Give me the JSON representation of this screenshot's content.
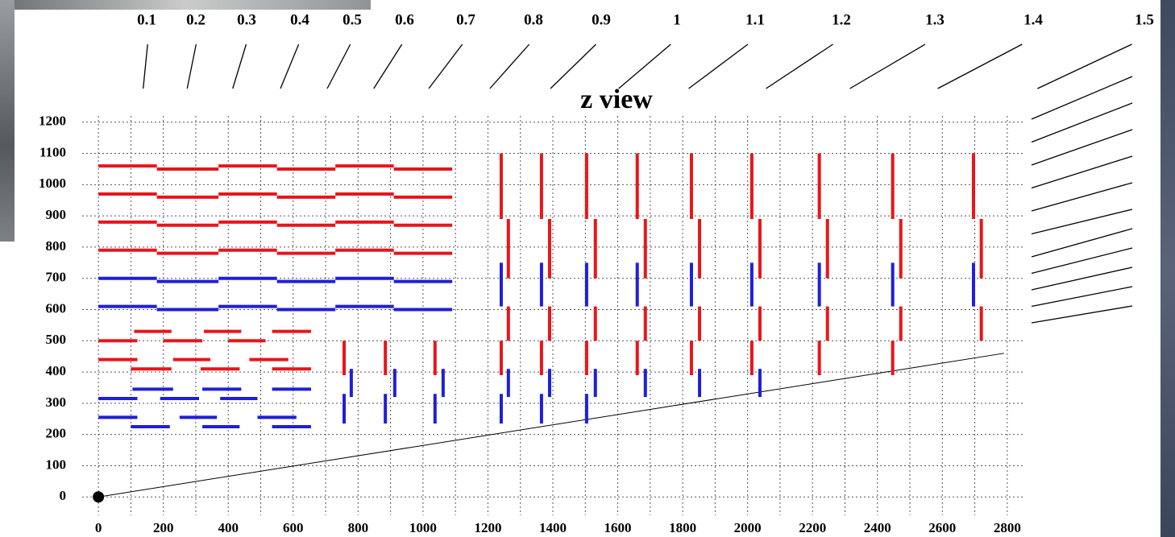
{
  "chart_data": {
    "type": "segments",
    "title": "z view",
    "eta": [
      0.1,
      0.2,
      0.3,
      0.4,
      0.5,
      0.6,
      0.7,
      0.8,
      0.9,
      1,
      1.1,
      1.2,
      1.3,
      1.4,
      1.5
    ],
    "xlim": [
      -50,
      2850
    ],
    "ylim": [
      -20,
      1220
    ],
    "xticks": [
      0,
      200,
      400,
      600,
      800,
      1000,
      1200,
      1400,
      1600,
      1800,
      2000,
      2200,
      2400,
      2600,
      2800
    ],
    "yticks": [
      0,
      100,
      200,
      300,
      400,
      500,
      600,
      700,
      800,
      900,
      1000,
      1100,
      1200
    ],
    "grid": true,
    "grid_step": 100,
    "origin": [
      0,
      0
    ],
    "line": {
      "x": [
        0,
        2790
      ],
      "y": [
        0,
        460
      ]
    },
    "series": [
      {
        "color": "#e8151b",
        "segments": [
          [
            0,
            1060,
            180,
            1060
          ],
          [
            180,
            1050,
            370,
            1050
          ],
          [
            370,
            1060,
            550,
            1060
          ],
          [
            550,
            1050,
            730,
            1050
          ],
          [
            730,
            1060,
            910,
            1060
          ],
          [
            910,
            1050,
            1090,
            1050
          ],
          [
            0,
            970,
            180,
            970
          ],
          [
            180,
            960,
            370,
            960
          ],
          [
            370,
            970,
            550,
            970
          ],
          [
            550,
            960,
            730,
            960
          ],
          [
            730,
            970,
            910,
            970
          ],
          [
            910,
            960,
            1090,
            960
          ],
          [
            0,
            880,
            180,
            880
          ],
          [
            180,
            870,
            370,
            870
          ],
          [
            370,
            880,
            550,
            880
          ],
          [
            550,
            870,
            730,
            870
          ],
          [
            730,
            880,
            910,
            880
          ],
          [
            910,
            870,
            1090,
            870
          ],
          [
            0,
            790,
            180,
            790
          ],
          [
            180,
            780,
            370,
            780
          ],
          [
            370,
            790,
            550,
            790
          ],
          [
            550,
            780,
            730,
            780
          ],
          [
            730,
            790,
            910,
            790
          ],
          [
            910,
            780,
            1090,
            780
          ],
          [
            110,
            530,
            225,
            530
          ],
          [
            325,
            530,
            440,
            530
          ],
          [
            535,
            530,
            655,
            530
          ],
          [
            0,
            500,
            120,
            500
          ],
          [
            200,
            500,
            320,
            500
          ],
          [
            400,
            500,
            515,
            500
          ],
          [
            0,
            440,
            120,
            440
          ],
          [
            230,
            440,
            345,
            440
          ],
          [
            465,
            440,
            585,
            440
          ],
          [
            100,
            410,
            225,
            410
          ],
          [
            315,
            410,
            435,
            410
          ],
          [
            535,
            410,
            655,
            410
          ],
          [
            757,
            500,
            757,
            390
          ],
          [
            884,
            500,
            884,
            390
          ],
          [
            1037,
            500,
            1037,
            390
          ],
          [
            1241,
            1100,
            1241,
            890
          ],
          [
            1263,
            890,
            1263,
            700
          ],
          [
            1263,
            610,
            1263,
            500
          ],
          [
            1241,
            500,
            1241,
            390
          ],
          [
            1365,
            1100,
            1365,
            890
          ],
          [
            1390,
            890,
            1390,
            700
          ],
          [
            1390,
            610,
            1390,
            500
          ],
          [
            1365,
            500,
            1365,
            390
          ],
          [
            1504,
            1100,
            1504,
            890
          ],
          [
            1531,
            890,
            1531,
            700
          ],
          [
            1531,
            610,
            1531,
            500
          ],
          [
            1504,
            500,
            1504,
            390
          ],
          [
            1660,
            1100,
            1660,
            890
          ],
          [
            1685,
            890,
            1685,
            700
          ],
          [
            1685,
            610,
            1685,
            500
          ],
          [
            1660,
            500,
            1660,
            390
          ],
          [
            1827,
            1100,
            1827,
            890
          ],
          [
            1852,
            890,
            1852,
            700
          ],
          [
            1852,
            610,
            1852,
            500
          ],
          [
            1827,
            500,
            1827,
            390
          ],
          [
            2013,
            1100,
            2013,
            890
          ],
          [
            2038,
            890,
            2038,
            700
          ],
          [
            2038,
            610,
            2038,
            500
          ],
          [
            2013,
            500,
            2013,
            390
          ],
          [
            2221,
            1100,
            2221,
            890
          ],
          [
            2246,
            890,
            2246,
            700
          ],
          [
            2246,
            610,
            2246,
            500
          ],
          [
            2221,
            500,
            2221,
            390
          ],
          [
            2447,
            1100,
            2447,
            890
          ],
          [
            2472,
            890,
            2472,
            700
          ],
          [
            2472,
            610,
            2472,
            500
          ],
          [
            2447,
            500,
            2447,
            390
          ],
          [
            2696,
            1100,
            2696,
            890
          ],
          [
            2720,
            890,
            2720,
            700
          ],
          [
            2720,
            610,
            2720,
            500
          ]
        ]
      },
      {
        "color": "#1f1fd8",
        "segments": [
          [
            0,
            700,
            180,
            700
          ],
          [
            180,
            690,
            370,
            690
          ],
          [
            370,
            700,
            550,
            700
          ],
          [
            550,
            690,
            730,
            690
          ],
          [
            730,
            700,
            910,
            700
          ],
          [
            910,
            690,
            1090,
            690
          ],
          [
            0,
            610,
            180,
            610
          ],
          [
            180,
            600,
            370,
            600
          ],
          [
            370,
            610,
            550,
            610
          ],
          [
            550,
            600,
            730,
            600
          ],
          [
            730,
            610,
            910,
            610
          ],
          [
            910,
            600,
            1090,
            600
          ],
          [
            105,
            345,
            230,
            345
          ],
          [
            320,
            345,
            440,
            345
          ],
          [
            535,
            345,
            655,
            345
          ],
          [
            0,
            315,
            120,
            315
          ],
          [
            190,
            315,
            310,
            315
          ],
          [
            375,
            315,
            490,
            315
          ],
          [
            0,
            255,
            120,
            255
          ],
          [
            250,
            255,
            365,
            255
          ],
          [
            490,
            255,
            610,
            255
          ],
          [
            100,
            225,
            220,
            225
          ],
          [
            320,
            225,
            435,
            225
          ],
          [
            535,
            225,
            655,
            225
          ],
          [
            1241,
            750,
            1241,
            610
          ],
          [
            1365,
            750,
            1365,
            610
          ],
          [
            1504,
            750,
            1504,
            610
          ],
          [
            1660,
            750,
            1660,
            610
          ],
          [
            1827,
            750,
            1827,
            610
          ],
          [
            2013,
            750,
            2013,
            610
          ],
          [
            2221,
            750,
            2221,
            610
          ],
          [
            2447,
            750,
            2447,
            610
          ],
          [
            2696,
            750,
            2696,
            610
          ],
          [
            779,
            410,
            779,
            320
          ],
          [
            913,
            410,
            913,
            320
          ],
          [
            1062,
            410,
            1062,
            320
          ],
          [
            1263,
            410,
            1263,
            320
          ],
          [
            1390,
            410,
            1390,
            320
          ],
          [
            1531,
            410,
            1531,
            320
          ],
          [
            1685,
            410,
            1685,
            320
          ],
          [
            1852,
            410,
            1852,
            320
          ],
          [
            2038,
            410,
            2038,
            320
          ],
          [
            757,
            330,
            757,
            235
          ],
          [
            884,
            330,
            884,
            235
          ],
          [
            1037,
            330,
            1037,
            235
          ],
          [
            1241,
            330,
            1241,
            235
          ],
          [
            1365,
            330,
            1365,
            235
          ],
          [
            1504,
            330,
            1504,
            235
          ]
        ]
      }
    ]
  }
}
